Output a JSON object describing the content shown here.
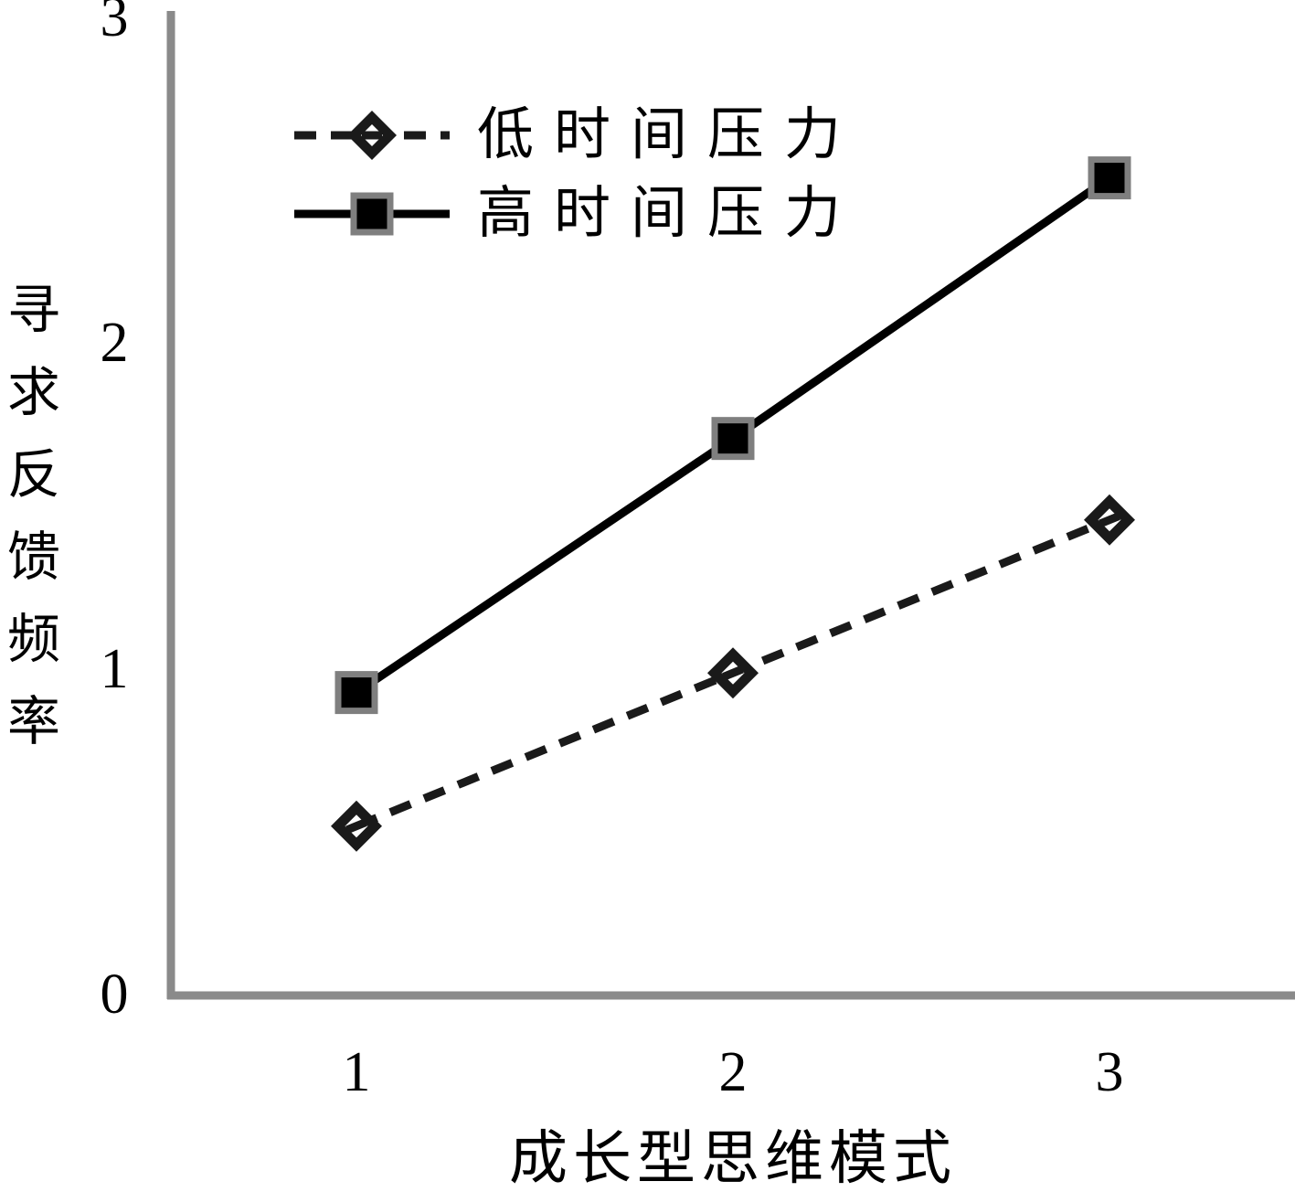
{
  "chart_data": {
    "type": "line",
    "title": "",
    "xlabel": "成长型思维模式",
    "ylabel": "寻求反馈频率",
    "categories": [
      1,
      2,
      3
    ],
    "x_ticks": [
      "1",
      "2",
      "3"
    ],
    "y_ticks": [
      "0",
      "1",
      "2",
      "3"
    ],
    "xlim": [
      1,
      3
    ],
    "ylim": [
      0,
      3
    ],
    "grid": false,
    "legend_position": "top-left",
    "series": [
      {
        "name": "低时间压力",
        "values": [
          0.52,
          0.99,
          1.46
        ],
        "line_style": "dashed",
        "marker": "diamond",
        "color": "#1a1a1a"
      },
      {
        "name": "高时间压力",
        "values": [
          0.93,
          1.71,
          2.51
        ],
        "line_style": "solid",
        "marker": "square",
        "color": "#000000"
      }
    ],
    "colors": {
      "axis": "#8a8a8a",
      "marker_border": "#7f7f7f",
      "background": "#ffffff",
      "text": "#000000"
    }
  }
}
